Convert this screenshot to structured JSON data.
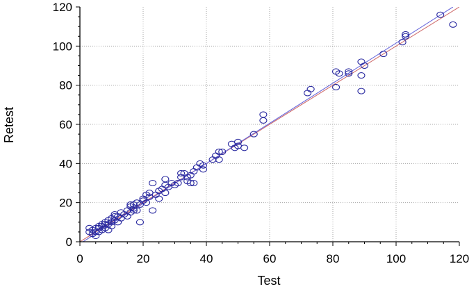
{
  "chart_data": {
    "type": "scatter",
    "title": "",
    "xlabel": "Test",
    "ylabel": "Retest",
    "xlim": [
      0,
      120
    ],
    "ylim": [
      0,
      120
    ],
    "xticks": [
      0,
      20,
      40,
      60,
      80,
      100,
      120
    ],
    "yticks": [
      0,
      20,
      40,
      60,
      80,
      100,
      120
    ],
    "grid": true,
    "colors": {
      "points": "#2a2aa0",
      "fit_line": "#6a6adc",
      "identity_line": "#d07070",
      "grid": "#a8a8a8"
    },
    "points": [
      [
        3,
        5
      ],
      [
        3,
        7
      ],
      [
        4,
        4
      ],
      [
        4,
        6
      ],
      [
        5,
        3
      ],
      [
        5,
        5
      ],
      [
        5,
        7
      ],
      [
        6,
        5
      ],
      [
        6,
        7
      ],
      [
        6,
        8
      ],
      [
        7,
        6
      ],
      [
        7,
        8
      ],
      [
        7,
        9
      ],
      [
        8,
        7
      ],
      [
        8,
        9
      ],
      [
        8,
        10
      ],
      [
        9,
        6
      ],
      [
        9,
        9
      ],
      [
        9,
        11
      ],
      [
        10,
        8
      ],
      [
        10,
        10
      ],
      [
        10,
        12
      ],
      [
        11,
        11
      ],
      [
        11,
        13
      ],
      [
        11,
        14
      ],
      [
        12,
        10
      ],
      [
        12,
        13
      ],
      [
        13,
        12
      ],
      [
        13,
        15
      ],
      [
        14,
        14
      ],
      [
        15,
        13
      ],
      [
        15,
        16
      ],
      [
        16,
        15
      ],
      [
        16,
        18
      ],
      [
        16,
        19
      ],
      [
        17,
        16
      ],
      [
        17,
        17
      ],
      [
        17,
        19
      ],
      [
        18,
        16
      ],
      [
        18,
        20
      ],
      [
        19,
        10
      ],
      [
        19,
        19
      ],
      [
        20,
        21
      ],
      [
        20,
        22
      ],
      [
        21,
        20
      ],
      [
        21,
        24
      ],
      [
        22,
        23
      ],
      [
        22,
        25
      ],
      [
        23,
        16
      ],
      [
        23,
        30
      ],
      [
        24,
        24
      ],
      [
        25,
        22
      ],
      [
        25,
        26
      ],
      [
        26,
        27
      ],
      [
        27,
        25
      ],
      [
        27,
        29
      ],
      [
        27,
        32
      ],
      [
        28,
        28
      ],
      [
        29,
        30
      ],
      [
        30,
        29
      ],
      [
        31,
        30
      ],
      [
        32,
        33
      ],
      [
        32,
        35
      ],
      [
        33,
        35
      ],
      [
        34,
        31
      ],
      [
        34,
        33
      ],
      [
        35,
        30
      ],
      [
        35,
        34
      ],
      [
        36,
        30
      ],
      [
        36,
        36
      ],
      [
        37,
        38
      ],
      [
        38,
        40
      ],
      [
        39,
        37
      ],
      [
        39,
        39
      ],
      [
        42,
        42
      ],
      [
        43,
        44
      ],
      [
        44,
        42
      ],
      [
        44,
        46
      ],
      [
        45,
        46
      ],
      [
        48,
        50
      ],
      [
        49,
        48
      ],
      [
        50,
        51
      ],
      [
        50,
        49
      ],
      [
        52,
        48
      ],
      [
        55,
        55
      ],
      [
        58,
        62
      ],
      [
        58,
        65
      ],
      [
        72,
        76
      ],
      [
        73,
        78
      ],
      [
        81,
        87
      ],
      [
        81,
        79
      ],
      [
        82,
        86
      ],
      [
        85,
        86
      ],
      [
        85,
        87
      ],
      [
        89,
        77
      ],
      [
        89,
        85
      ],
      [
        89,
        92
      ],
      [
        90,
        90
      ],
      [
        96,
        96
      ],
      [
        102,
        102
      ],
      [
        103,
        105
      ],
      [
        103,
        106
      ],
      [
        114,
        116
      ],
      [
        118,
        111
      ]
    ],
    "fit_line": {
      "from": [
        0,
        -1
      ],
      "to": [
        118,
        120
      ]
    },
    "identity_line": {
      "from": [
        0,
        0
      ],
      "to": [
        120,
        120
      ]
    }
  }
}
